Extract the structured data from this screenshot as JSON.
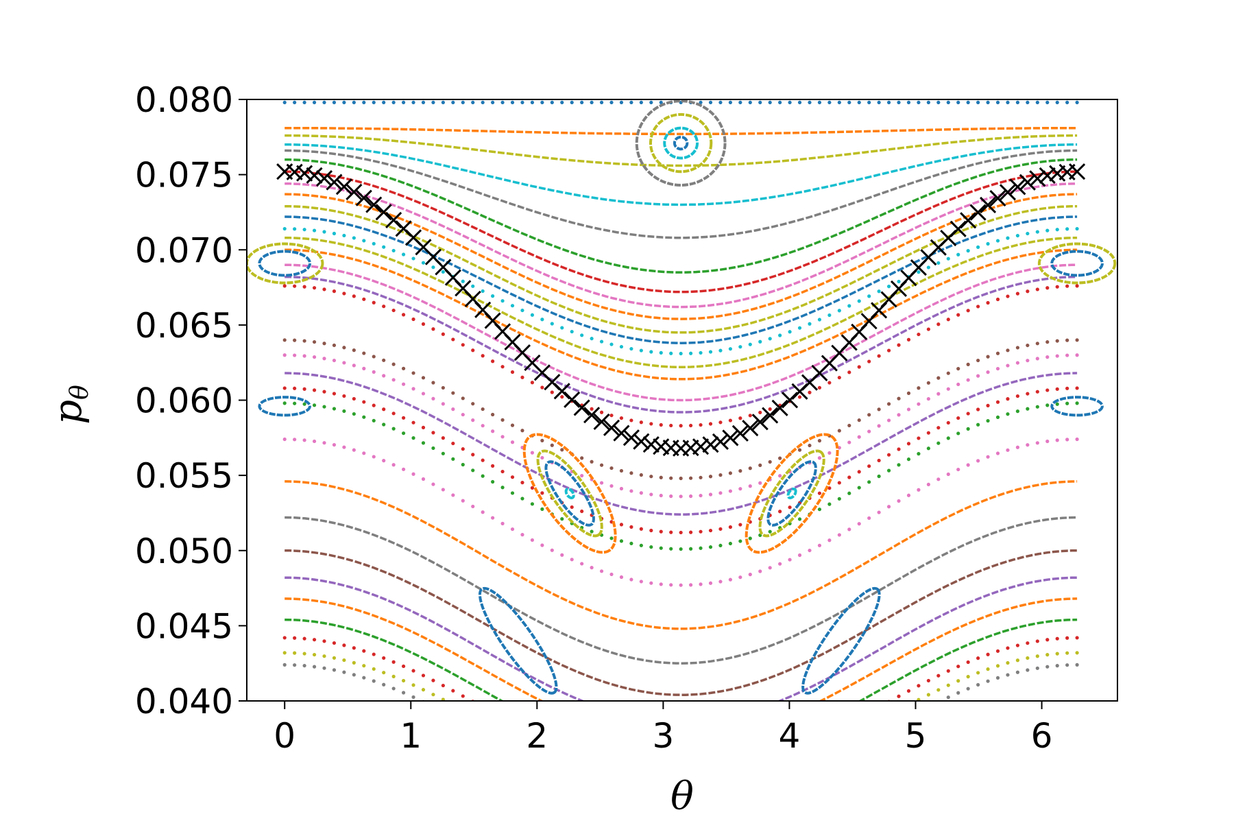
{
  "chart_data": {
    "type": "scatter",
    "title": "",
    "xlabel": "θ",
    "ylabel_main": "p",
    "ylabel_sub": "θ",
    "xlim": [
      -0.3,
      6.6
    ],
    "ylim": [
      0.04,
      0.08
    ],
    "xticks": [
      0,
      1,
      2,
      3,
      4,
      5,
      6
    ],
    "yticks": [
      0.04,
      0.045,
      0.05,
      0.055,
      0.06,
      0.065,
      0.07,
      0.075,
      0.08
    ],
    "ytick_labels": [
      "0.040",
      "0.045",
      "0.050",
      "0.055",
      "0.060",
      "0.065",
      "0.070",
      "0.075",
      "0.080"
    ],
    "xtick_labels": [
      "0",
      "1",
      "2",
      "3",
      "4",
      "5",
      "6"
    ],
    "grid": false,
    "legend": "none",
    "palette": [
      "#1f77b4",
      "#ff7f0e",
      "#2ca02c",
      "#d62728",
      "#9467bd",
      "#8c564b",
      "#e377c2",
      "#7f7f7f",
      "#bcbd22",
      "#17becf"
    ],
    "marker_series": {
      "color": "#000000",
      "marker": "x",
      "description_of_curve": "separatrix",
      "p_center": 0.066,
      "p_amplitude": 0.0092
    },
    "invariant_curves": [
      {
        "kind": "passing",
        "p0": 0.0798,
        "amp": 0.0,
        "color": "#1f77b4",
        "dots": true
      },
      {
        "kind": "passing",
        "p0": 0.0781,
        "amp": 0.0004,
        "color": "#ff7f0e",
        "dots": false
      },
      {
        "kind": "passing",
        "p0": 0.0776,
        "amp": 0.002,
        "color": "#bcbd22",
        "dots": false
      },
      {
        "kind": "passing",
        "p0": 0.077,
        "amp": 0.004,
        "color": "#17becf",
        "dots": false
      },
      {
        "kind": "passing",
        "p0": 0.0766,
        "amp": 0.0058,
        "color": "#7f7f7f",
        "dots": false
      },
      {
        "kind": "passing",
        "p0": 0.076,
        "amp": 0.0075,
        "color": "#2ca02c",
        "dots": false
      },
      {
        "kind": "passing",
        "p0": 0.0752,
        "amp": 0.008,
        "color": "#d62728",
        "dots": false
      },
      {
        "kind": "passing",
        "p0": 0.0744,
        "amp": 0.0082,
        "color": "#e377c2",
        "dots": false
      },
      {
        "kind": "passing",
        "p0": 0.0737,
        "amp": 0.0083,
        "color": "#ff7f0e",
        "dots": false
      },
      {
        "kind": "passing",
        "p0": 0.0729,
        "amp": 0.0084,
        "color": "#bcbd22",
        "dots": false
      },
      {
        "kind": "passing",
        "p0": 0.0722,
        "amp": 0.0084,
        "color": "#1f77b4",
        "dots": false
      },
      {
        "kind": "passing",
        "p0": 0.0714,
        "amp": 0.0083,
        "color": "#17becf",
        "dots": true
      },
      {
        "kind": "passing",
        "p0": 0.0708,
        "amp": 0.0086,
        "color": "#bcbd22",
        "dots": false
      },
      {
        "kind": "passing",
        "p0": 0.07,
        "amp": 0.0086,
        "color": "#ff7f0e",
        "dots": false
      },
      {
        "kind": "passing",
        "p0": 0.069,
        "amp": 0.009,
        "color": "#e377c2",
        "dots": false
      },
      {
        "kind": "passing",
        "p0": 0.0682,
        "amp": 0.009,
        "color": "#9467bd",
        "dots": false
      },
      {
        "kind": "passing",
        "p0": 0.0676,
        "amp": 0.0093,
        "color": "#d62728",
        "dots": true
      },
      {
        "kind": "passing",
        "p0": 0.064,
        "amp": 0.0092,
        "color": "#8c564b",
        "dots": true
      },
      {
        "kind": "passing",
        "p0": 0.063,
        "amp": 0.0094,
        "color": "#e377c2",
        "dots": true
      },
      {
        "kind": "passing",
        "p0": 0.0618,
        "amp": 0.0094,
        "color": "#9467bd",
        "dots": false
      },
      {
        "kind": "passing",
        "p0": 0.0608,
        "amp": 0.0096,
        "color": "#d62728",
        "dots": true
      },
      {
        "kind": "passing",
        "p0": 0.0598,
        "amp": 0.0097,
        "color": "#2ca02c",
        "dots": true
      },
      {
        "kind": "passing",
        "p0": 0.0574,
        "amp": 0.0097,
        "color": "#e377c2",
        "dots": true
      },
      {
        "kind": "passing",
        "p0": 0.0546,
        "amp": 0.0098,
        "color": "#ff7f0e",
        "dots": false
      },
      {
        "kind": "passing",
        "p0": 0.0522,
        "amp": 0.0097,
        "color": "#7f7f7f",
        "dots": false
      },
      {
        "kind": "passing",
        "p0": 0.05,
        "amp": 0.0096,
        "color": "#8c564b",
        "dots": false
      },
      {
        "kind": "passing",
        "p0": 0.0482,
        "amp": 0.0096,
        "color": "#9467bd",
        "dots": false
      },
      {
        "kind": "passing",
        "p0": 0.0468,
        "amp": 0.0094,
        "color": "#ff7f0e",
        "dots": false
      },
      {
        "kind": "passing",
        "p0": 0.0454,
        "amp": 0.0094,
        "color": "#2ca02c",
        "dots": false
      },
      {
        "kind": "passing",
        "p0": 0.0442,
        "amp": 0.0092,
        "color": "#d62728",
        "dots": true
      },
      {
        "kind": "passing",
        "p0": 0.0432,
        "amp": 0.009,
        "color": "#bcbd22",
        "dots": true
      },
      {
        "kind": "passing",
        "p0": 0.0424,
        "amp": 0.009,
        "color": "#7f7f7f",
        "dots": true
      }
    ],
    "islands": [
      {
        "theta": 3.14,
        "p": 0.0771,
        "a": 0.35,
        "b": 0.0028,
        "tilt": 0,
        "color": "#7f7f7f"
      },
      {
        "theta": 3.14,
        "p": 0.0771,
        "a": 0.24,
        "b": 0.0019,
        "tilt": 0,
        "color": "#bcbd22"
      },
      {
        "theta": 3.14,
        "p": 0.0771,
        "a": 0.13,
        "b": 0.001,
        "tilt": 0,
        "color": "#17becf"
      },
      {
        "theta": 3.14,
        "p": 0.0771,
        "a": 0.05,
        "b": 0.0004,
        "tilt": 0,
        "color": "#1f77b4"
      },
      {
        "theta": 2.26,
        "p": 0.0538,
        "a": 0.55,
        "b": 0.0018,
        "tilt": -1,
        "color": "#ff7f0e"
      },
      {
        "theta": 2.26,
        "p": 0.0538,
        "a": 0.4,
        "b": 0.0011,
        "tilt": -1,
        "color": "#bcbd22"
      },
      {
        "theta": 2.26,
        "p": 0.0538,
        "a": 0.3,
        "b": 0.0008,
        "tilt": -1,
        "color": "#1f77b4"
      },
      {
        "theta": 2.26,
        "p": 0.0538,
        "a": 0.04,
        "b": 0.0002,
        "tilt": -1,
        "color": "#17becf"
      },
      {
        "theta": 4.02,
        "p": 0.0538,
        "a": 0.55,
        "b": 0.0018,
        "tilt": 1,
        "color": "#ff7f0e"
      },
      {
        "theta": 4.02,
        "p": 0.0538,
        "a": 0.4,
        "b": 0.0011,
        "tilt": 1,
        "color": "#bcbd22"
      },
      {
        "theta": 4.02,
        "p": 0.0538,
        "a": 0.3,
        "b": 0.0008,
        "tilt": 1,
        "color": "#1f77b4"
      },
      {
        "theta": 4.02,
        "p": 0.0538,
        "a": 0.04,
        "b": 0.0002,
        "tilt": 1,
        "color": "#17becf"
      },
      {
        "theta": 0.0,
        "p": 0.0691,
        "a": 0.3,
        "b": 0.0013,
        "tilt": 0,
        "color": "#bcbd22"
      },
      {
        "theta": 0.0,
        "p": 0.0691,
        "a": 0.2,
        "b": 0.0008,
        "tilt": 0,
        "color": "#1f77b4"
      },
      {
        "theta": 6.28,
        "p": 0.0691,
        "a": 0.3,
        "b": 0.0013,
        "tilt": 0,
        "color": "#bcbd22"
      },
      {
        "theta": 6.28,
        "p": 0.0691,
        "a": 0.2,
        "b": 0.0008,
        "tilt": 0,
        "color": "#1f77b4"
      },
      {
        "theta": 0.0,
        "p": 0.0596,
        "a": 0.2,
        "b": 0.0006,
        "tilt": 0,
        "color": "#1f77b4"
      },
      {
        "theta": 6.28,
        "p": 0.0596,
        "a": 0.2,
        "b": 0.0006,
        "tilt": 0,
        "color": "#1f77b4"
      },
      {
        "theta": 1.85,
        "p": 0.044,
        "a": 0.5,
        "b": 0.001,
        "tilt": -1.6,
        "color": "#1f77b4"
      },
      {
        "theta": 4.41,
        "p": 0.044,
        "a": 0.5,
        "b": 0.001,
        "tilt": 1.6,
        "color": "#1f77b4"
      }
    ]
  }
}
